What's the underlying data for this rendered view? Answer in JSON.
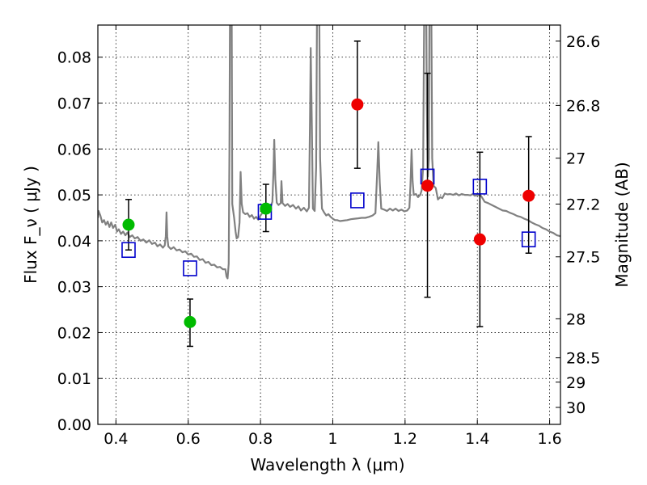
{
  "chart_data": {
    "type": "scatter",
    "xlabel": "Wavelength  λ (μm)",
    "ylabel": "Flux  F_ν  ( μJy )",
    "ylabel_right": "Magnitude (AB)",
    "xlim": [
      0.35,
      1.63
    ],
    "ylim": [
      0.0,
      0.087
    ],
    "grid": true,
    "x_ticks": [
      0.4,
      0.6,
      0.8,
      1.0,
      1.2,
      1.4,
      1.6
    ],
    "x_tick_labels": [
      "0.4",
      "0.6",
      "0.8",
      "1",
      "1.2",
      "1.4",
      "1.6"
    ],
    "y_ticks": [
      0.0,
      0.01,
      0.02,
      0.03,
      0.04,
      0.05,
      0.06,
      0.07,
      0.08
    ],
    "y_tick_labels": [
      "0.00",
      "0.01",
      "0.02",
      "0.03",
      "0.04",
      "0.05",
      "0.06",
      "0.07",
      "0.08"
    ],
    "right_ticks": [
      {
        "label": "26.6",
        "flux": 0.0835
      },
      {
        "label": "26.8",
        "flux": 0.0695
      },
      {
        "label": "27",
        "flux": 0.058
      },
      {
        "label": "27.2",
        "flux": 0.048
      },
      {
        "label": "27.5",
        "flux": 0.0365
      },
      {
        "label": "28",
        "flux": 0.023
      },
      {
        "label": "28.5",
        "flux": 0.0145
      },
      {
        "label": "29",
        "flux": 0.0092
      },
      {
        "label": "30",
        "flux": 0.0037
      }
    ],
    "series": [
      {
        "marker": "square-open",
        "color": "#0000cc",
        "points": [
          {
            "x": 0.435,
            "y": 0.038
          },
          {
            "x": 0.605,
            "y": 0.034
          },
          {
            "x": 0.812,
            "y": 0.0463
          },
          {
            "x": 1.068,
            "y": 0.0488
          },
          {
            "x": 1.262,
            "y": 0.054
          },
          {
            "x": 1.407,
            "y": 0.0518
          },
          {
            "x": 1.542,
            "y": 0.0403
          }
        ]
      },
      {
        "marker": "circle",
        "color": "#00bb00",
        "points": [
          {
            "x": 0.435,
            "y": 0.0435,
            "err_lo": 0.038,
            "err_hi": 0.049
          },
          {
            "x": 0.605,
            "y": 0.0223,
            "err_lo": 0.017,
            "err_hi": 0.0273
          },
          {
            "x": 0.815,
            "y": 0.047,
            "err_lo": 0.042,
            "err_hi": 0.0523
          }
        ]
      },
      {
        "marker": "circle",
        "color": "#ee0000",
        "points": [
          {
            "x": 1.068,
            "y": 0.0697,
            "err_lo": 0.0558,
            "err_hi": 0.0835
          },
          {
            "x": 1.262,
            "y": 0.052,
            "err_lo": 0.0277,
            "err_hi": 0.0765
          },
          {
            "x": 1.407,
            "y": 0.0403,
            "err_lo": 0.0213,
            "err_hi": 0.0593
          },
          {
            "x": 1.542,
            "y": 0.0498,
            "err_lo": 0.0373,
            "err_hi": 0.0627
          }
        ]
      }
    ],
    "model_spectrum": {
      "color": "#808080",
      "points": [
        [
          0.35,
          0.045
        ],
        [
          0.352,
          0.0465
        ],
        [
          0.357,
          0.0455
        ],
        [
          0.362,
          0.044
        ],
        [
          0.367,
          0.0445
        ],
        [
          0.372,
          0.0435
        ],
        [
          0.377,
          0.0442
        ],
        [
          0.382,
          0.043
        ],
        [
          0.387,
          0.044
        ],
        [
          0.392,
          0.0428
        ],
        [
          0.398,
          0.0435
        ],
        [
          0.403,
          0.042
        ],
        [
          0.408,
          0.0425
        ],
        [
          0.414,
          0.0415
        ],
        [
          0.42,
          0.042
        ],
        [
          0.426,
          0.0412
        ],
        [
          0.432,
          0.0418
        ],
        [
          0.438,
          0.0408
        ],
        [
          0.445,
          0.0412
        ],
        [
          0.452,
          0.0405
        ],
        [
          0.46,
          0.0408
        ],
        [
          0.468,
          0.04
        ],
        [
          0.476,
          0.0403
        ],
        [
          0.484,
          0.0396
        ],
        [
          0.492,
          0.0401
        ],
        [
          0.5,
          0.0393
        ],
        [
          0.508,
          0.0396
        ],
        [
          0.515,
          0.0388
        ],
        [
          0.522,
          0.0392
        ],
        [
          0.53,
          0.0385
        ],
        [
          0.535,
          0.039
        ],
        [
          0.538,
          0.041
        ],
        [
          0.54,
          0.0462
        ],
        [
          0.542,
          0.041
        ],
        [
          0.545,
          0.0388
        ],
        [
          0.552,
          0.0382
        ],
        [
          0.56,
          0.0386
        ],
        [
          0.568,
          0.0379
        ],
        [
          0.576,
          0.0381
        ],
        [
          0.584,
          0.0375
        ],
        [
          0.592,
          0.0377
        ],
        [
          0.6,
          0.037
        ],
        [
          0.608,
          0.0372
        ],
        [
          0.616,
          0.0365
        ],
        [
          0.624,
          0.0366
        ],
        [
          0.632,
          0.0358
        ],
        [
          0.64,
          0.036
        ],
        [
          0.648,
          0.0352
        ],
        [
          0.656,
          0.0354
        ],
        [
          0.664,
          0.0347
        ],
        [
          0.672,
          0.0348
        ],
        [
          0.68,
          0.0342
        ],
        [
          0.688,
          0.0343
        ],
        [
          0.696,
          0.0338
        ],
        [
          0.703,
          0.0338
        ],
        [
          0.706,
          0.0322
        ],
        [
          0.709,
          0.0318
        ],
        [
          0.712,
          0.035
        ],
        [
          0.714,
          0.06
        ],
        [
          0.716,
          0.1
        ],
        [
          0.72,
          0.1
        ],
        [
          0.722,
          0.048
        ],
        [
          0.727,
          0.045
        ],
        [
          0.731,
          0.042
        ],
        [
          0.734,
          0.0405
        ],
        [
          0.738,
          0.0408
        ],
        [
          0.742,
          0.044
        ],
        [
          0.745,
          0.055
        ],
        [
          0.748,
          0.048
        ],
        [
          0.752,
          0.0462
        ],
        [
          0.758,
          0.0458
        ],
        [
          0.764,
          0.046
        ],
        [
          0.77,
          0.0452
        ],
        [
          0.776,
          0.0456
        ],
        [
          0.782,
          0.0448
        ],
        [
          0.788,
          0.0452
        ],
        [
          0.794,
          0.0446
        ],
        [
          0.8,
          0.0455
        ],
        [
          0.806,
          0.0462
        ],
        [
          0.812,
          0.0472
        ],
        [
          0.818,
          0.048
        ],
        [
          0.825,
          0.0472
        ],
        [
          0.83,
          0.0478
        ],
        [
          0.833,
          0.0485
        ],
        [
          0.836,
          0.0555
        ],
        [
          0.838,
          0.062
        ],
        [
          0.841,
          0.0535
        ],
        [
          0.845,
          0.0483
        ],
        [
          0.85,
          0.0478
        ],
        [
          0.856,
          0.0482
        ],
        [
          0.858,
          0.053
        ],
        [
          0.861,
          0.0482
        ],
        [
          0.868,
          0.0476
        ],
        [
          0.875,
          0.048
        ],
        [
          0.882,
          0.0474
        ],
        [
          0.89,
          0.0478
        ],
        [
          0.898,
          0.047
        ],
        [
          0.905,
          0.0475
        ],
        [
          0.912,
          0.0466
        ],
        [
          0.92,
          0.0472
        ],
        [
          0.928,
          0.0464
        ],
        [
          0.934,
          0.0472
        ],
        [
          0.937,
          0.066
        ],
        [
          0.939,
          0.082
        ],
        [
          0.942,
          0.065
        ],
        [
          0.945,
          0.047
        ],
        [
          0.95,
          0.0465
        ],
        [
          0.954,
          0.056
        ],
        [
          0.957,
          0.1
        ],
        [
          0.962,
          0.1
        ],
        [
          0.965,
          0.058
        ],
        [
          0.97,
          0.047
        ],
        [
          0.976,
          0.0462
        ],
        [
          0.982,
          0.0455
        ],
        [
          0.988,
          0.0458
        ],
        [
          0.994,
          0.0452
        ],
        [
          1.0,
          0.0448
        ],
        [
          1.006,
          0.0445
        ],
        [
          1.012,
          0.0445
        ],
        [
          1.02,
          0.0443
        ],
        [
          1.03,
          0.0444
        ],
        [
          1.04,
          0.0445
        ],
        [
          1.05,
          0.0447
        ],
        [
          1.06,
          0.0448
        ],
        [
          1.07,
          0.0449
        ],
        [
          1.08,
          0.045
        ],
        [
          1.09,
          0.045
        ],
        [
          1.1,
          0.0452
        ],
        [
          1.11,
          0.0455
        ],
        [
          1.118,
          0.046
        ],
        [
          1.123,
          0.055
        ],
        [
          1.126,
          0.0615
        ],
        [
          1.13,
          0.0525
        ],
        [
          1.134,
          0.047
        ],
        [
          1.142,
          0.0468
        ],
        [
          1.15,
          0.0465
        ],
        [
          1.158,
          0.047
        ],
        [
          1.166,
          0.0466
        ],
        [
          1.174,
          0.047
        ],
        [
          1.182,
          0.0465
        ],
        [
          1.19,
          0.0468
        ],
        [
          1.198,
          0.0464
        ],
        [
          1.206,
          0.0466
        ],
        [
          1.212,
          0.0472
        ],
        [
          1.215,
          0.052
        ],
        [
          1.218,
          0.0598
        ],
        [
          1.221,
          0.053
        ],
        [
          1.224,
          0.05
        ],
        [
          1.23,
          0.0502
        ],
        [
          1.236,
          0.0495
        ],
        [
          1.242,
          0.05
        ],
        [
          1.246,
          0.051
        ],
        [
          1.25,
          0.056
        ],
        [
          1.252,
          0.08
        ],
        [
          1.254,
          0.1
        ],
        [
          1.258,
          0.1
        ],
        [
          1.26,
          0.07
        ],
        [
          1.263,
          0.054
        ],
        [
          1.266,
          0.0578
        ],
        [
          1.268,
          0.1
        ],
        [
          1.272,
          0.1
        ],
        [
          1.275,
          0.058
        ],
        [
          1.279,
          0.052
        ],
        [
          1.285,
          0.0515
        ],
        [
          1.291,
          0.049
        ],
        [
          1.297,
          0.0495
        ],
        [
          1.303,
          0.0493
        ],
        [
          1.31,
          0.0503
        ],
        [
          1.317,
          0.0501
        ],
        [
          1.325,
          0.0502
        ],
        [
          1.333,
          0.05
        ],
        [
          1.341,
          0.0503
        ],
        [
          1.349,
          0.0499
        ],
        [
          1.357,
          0.0502
        ],
        [
          1.365,
          0.05
        ],
        [
          1.373,
          0.05
        ],
        [
          1.381,
          0.0499
        ],
        [
          1.387,
          0.0502
        ],
        [
          1.393,
          0.0498
        ],
        [
          1.4,
          0.05
        ],
        [
          1.41,
          0.0498
        ],
        [
          1.42,
          0.0485
        ],
        [
          1.43,
          0.0482
        ],
        [
          1.44,
          0.0478
        ],
        [
          1.45,
          0.0474
        ],
        [
          1.46,
          0.047
        ],
        [
          1.47,
          0.0466
        ],
        [
          1.48,
          0.0465
        ],
        [
          1.49,
          0.0461
        ],
        [
          1.5,
          0.0458
        ],
        [
          1.51,
          0.0454
        ],
        [
          1.52,
          0.0452
        ],
        [
          1.53,
          0.0448
        ],
        [
          1.54,
          0.0445
        ],
        [
          1.55,
          0.044
        ],
        [
          1.56,
          0.0436
        ],
        [
          1.57,
          0.0433
        ],
        [
          1.58,
          0.0428
        ],
        [
          1.59,
          0.0425
        ],
        [
          1.6,
          0.042
        ],
        [
          1.61,
          0.0417
        ],
        [
          1.62,
          0.0412
        ],
        [
          1.63,
          0.041
        ]
      ]
    }
  }
}
